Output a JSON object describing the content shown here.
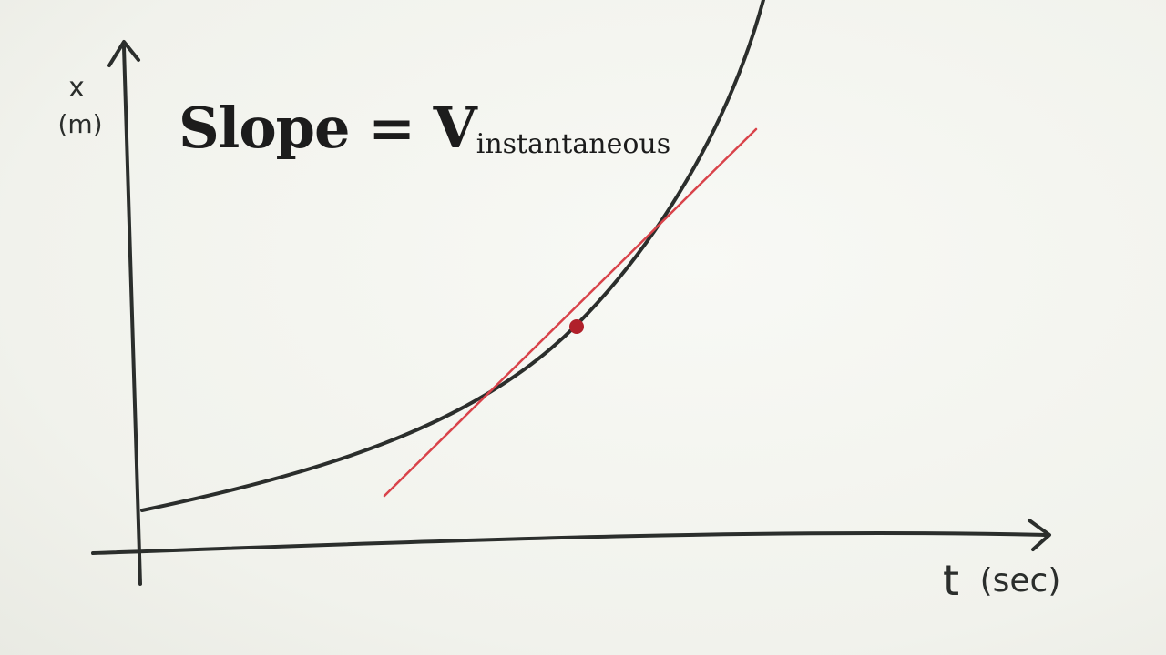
{
  "equation": {
    "lhs": "Slope",
    "equals": "=",
    "symbol": "V",
    "subscript": "instantaneous"
  },
  "axes": {
    "y_label_var": "x",
    "y_label_unit": "(m)",
    "x_label_var": "t",
    "x_label_unit": "(sec)"
  },
  "colors": {
    "ink": "#2b2e2c",
    "tangent": "#d9434a",
    "point": "#b0202a"
  }
}
